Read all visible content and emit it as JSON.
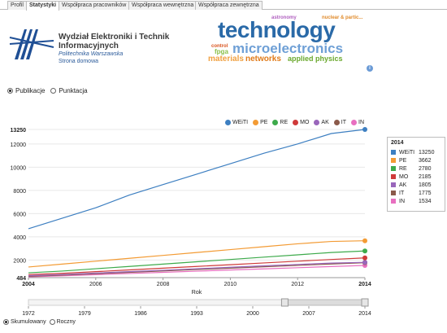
{
  "tabs": [
    {
      "label": "Profil",
      "active": false
    },
    {
      "label": "Statystyki",
      "active": true
    },
    {
      "label": "Współpraca pracowników",
      "active": false
    },
    {
      "label": "Współpraca wewnętrzna",
      "active": false
    },
    {
      "label": "Współpraca zewnętrzna",
      "active": false
    }
  ],
  "institution": {
    "name": "Wydział Elektroniki i Technik Informacyjnych",
    "university": "Politechnika Warszawska",
    "home_link": "Strona domowa"
  },
  "tag_cloud": {
    "words": [
      {
        "text": "technology",
        "color": "#2a6aa8"
      },
      {
        "text": "microelectronics",
        "color": "#6fa0d6"
      },
      {
        "text": "networks",
        "color": "#e07b1a"
      },
      {
        "text": "applied physics",
        "color": "#6aa82c"
      },
      {
        "text": "materials",
        "color": "#f0a040"
      },
      {
        "text": "fpga",
        "color": "#8ac04a"
      },
      {
        "text": "control",
        "color": "#d9541e"
      },
      {
        "text": "astronomy",
        "color": "#b060c0"
      },
      {
        "text": "nuclear & partic...",
        "color": "#e08a2a"
      }
    ]
  },
  "mode_radios": {
    "publikacje": "Publikacje",
    "punktacja": "Punktacja",
    "selected": "publikacje"
  },
  "bottom_radios": {
    "skumulowany": "Skumulowany",
    "roczny": "Roczny",
    "selected": "skumulowany"
  },
  "chart_data": {
    "type": "line",
    "xlabel": "Rok",
    "ylabel": "",
    "ylim": [
      484,
      13250
    ],
    "y_ticks": [
      "484",
      "2000",
      "4000",
      "6000",
      "8000",
      "10000",
      "12000",
      "13250"
    ],
    "x_ticks": [
      "2004",
      "2006",
      "2008",
      "2010",
      "2012",
      "2014"
    ],
    "x": [
      2004,
      2005,
      2006,
      2007,
      2008,
      2009,
      2010,
      2011,
      2012,
      2013,
      2014
    ],
    "series": [
      {
        "name": "WEiTI",
        "color": "#3d7fc1",
        "values": [
          4700,
          5600,
          6500,
          7600,
          8500,
          9400,
          10300,
          11200,
          12000,
          12900,
          13250
        ],
        "final": "13250"
      },
      {
        "name": "PE",
        "color": "#f39b34",
        "values": [
          1400,
          1650,
          1900,
          2150,
          2400,
          2650,
          2900,
          3150,
          3400,
          3600,
          3662
        ],
        "final": "3662"
      },
      {
        "name": "RE",
        "color": "#3daa4b",
        "values": [
          900,
          1050,
          1250,
          1450,
          1650,
          1850,
          2050,
          2250,
          2450,
          2650,
          2780
        ],
        "final": "2780"
      },
      {
        "name": "MO",
        "color": "#cf3a3a",
        "values": [
          750,
          850,
          1000,
          1150,
          1300,
          1450,
          1600,
          1750,
          1900,
          2050,
          2185
        ],
        "final": "2185"
      },
      {
        "name": "AK",
        "color": "#9966bb",
        "values": [
          650,
          750,
          880,
          1000,
          1120,
          1250,
          1380,
          1500,
          1620,
          1740,
          1805
        ],
        "final": "1805"
      },
      {
        "name": "IT",
        "color": "#8b5a4a",
        "values": [
          600,
          700,
          820,
          940,
          1060,
          1180,
          1300,
          1420,
          1540,
          1660,
          1775
        ],
        "final": "1775"
      },
      {
        "name": "IN",
        "color": "#e86fc0",
        "values": [
          550,
          640,
          740,
          840,
          940,
          1040,
          1140,
          1240,
          1340,
          1440,
          1534
        ],
        "final": "1534"
      }
    ],
    "legend_title": "2014",
    "legend_position": "right"
  },
  "timeline": {
    "ticks": [
      "1972",
      "1979",
      "1986",
      "1993",
      "2000",
      "2007",
      "2014"
    ],
    "range": [
      1972,
      2014
    ],
    "selected_range": [
      2004,
      2014
    ]
  }
}
